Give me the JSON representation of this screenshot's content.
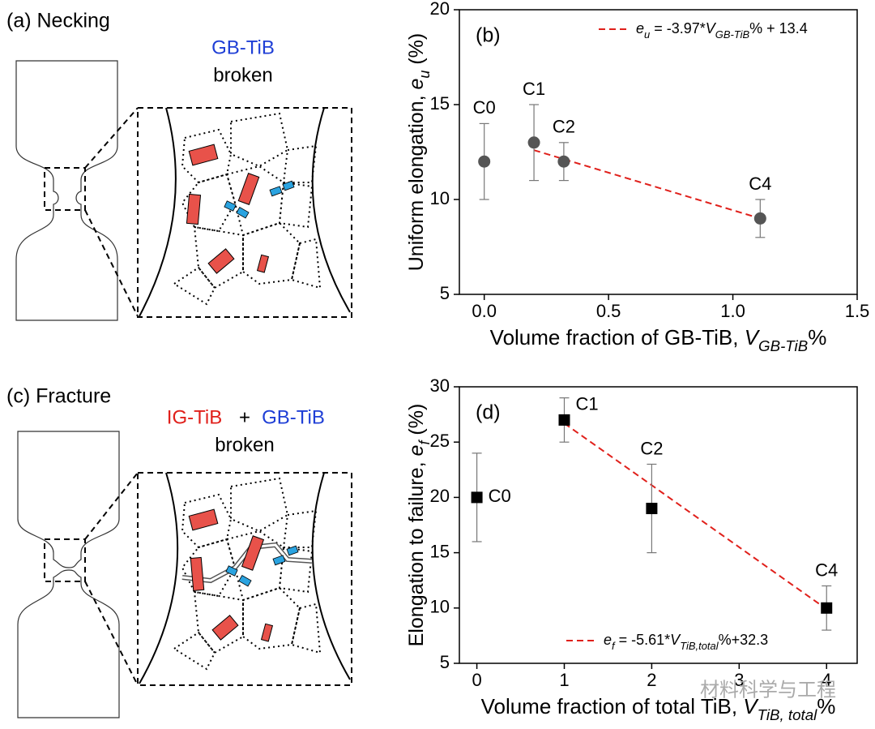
{
  "schematics": [
    {
      "title": "(a) Necking",
      "caption": [
        {
          "text": "GB-TiB",
          "color": "#1f3fd6"
        },
        {
          "text": "broken",
          "color": "#000000"
        }
      ]
    },
    {
      "title": "(c) Fracture",
      "caption": [
        {
          "text": "IG-TiB",
          "color": "#e0201b"
        },
        {
          "text": "+",
          "color": "#000000"
        },
        {
          "text": "GB-TiB",
          "color": "#1f3fd6"
        },
        {
          "text": "broken",
          "color": "#000000"
        }
      ]
    }
  ],
  "watermark": "材料科学与工程",
  "chart_data": [
    {
      "type": "scatter",
      "panel": "(b)",
      "marker": "circle",
      "color": "#555555",
      "x": [
        0,
        0.2,
        0.32,
        1.11
      ],
      "values": [
        12,
        13,
        12,
        9
      ],
      "errors": [
        2,
        2,
        1,
        1
      ],
      "point_labels": [
        "C0",
        "C1",
        "C2",
        "C4"
      ],
      "xlabel": [
        "Volume fraction of GB-TiB, ",
        "V",
        "GB-TiB",
        "%"
      ],
      "ylabel": [
        "Uniform elongation, ",
        "e",
        "u",
        " (%)"
      ],
      "xlim": [
        -0.1,
        1.5
      ],
      "ylim": [
        5,
        20
      ],
      "xticks": [
        {
          "value": 0,
          "label": "0.0"
        },
        0.5,
        {
          "value": 1,
          "label": "1.0"
        },
        1.5
      ],
      "yticks": [
        5,
        10,
        15,
        20
      ],
      "fit": {
        "name": [
          "e",
          "u",
          " = -3.97*",
          "V",
          "GB-TiB",
          "% + 13.4"
        ],
        "color": "#e0201b",
        "x": [
          0.2,
          1.11
        ],
        "values": [
          12.6,
          9.0
        ]
      },
      "legend": "upper right"
    },
    {
      "type": "scatter",
      "panel": "(d)",
      "marker": "square",
      "color": "#000000",
      "x": [
        0,
        1,
        2,
        4
      ],
      "values": [
        20,
        27,
        19,
        10
      ],
      "errors": [
        4,
        2,
        4,
        2
      ],
      "point_labels": [
        "C0",
        "C1",
        "C2",
        "C4"
      ],
      "xlabel": [
        "Volume fraction of total TiB, ",
        "V",
        "TiB, total",
        "%"
      ],
      "ylabel": [
        "Elongation to failure, ",
        "e",
        "f",
        " (%)"
      ],
      "xlim": [
        -0.2,
        4.35
      ],
      "ylim": [
        5,
        30
      ],
      "xticks": [
        0,
        1,
        2,
        3,
        4
      ],
      "yticks": [
        5,
        10,
        15,
        20,
        25,
        30
      ],
      "fit": {
        "name": [
          "e",
          "f",
          " = -5.61*",
          "V",
          "TiB,total",
          "%+32.3"
        ],
        "color": "#e0201b",
        "x": [
          1,
          4
        ],
        "values": [
          26.7,
          9.9
        ]
      },
      "legend": "lower center"
    }
  ]
}
